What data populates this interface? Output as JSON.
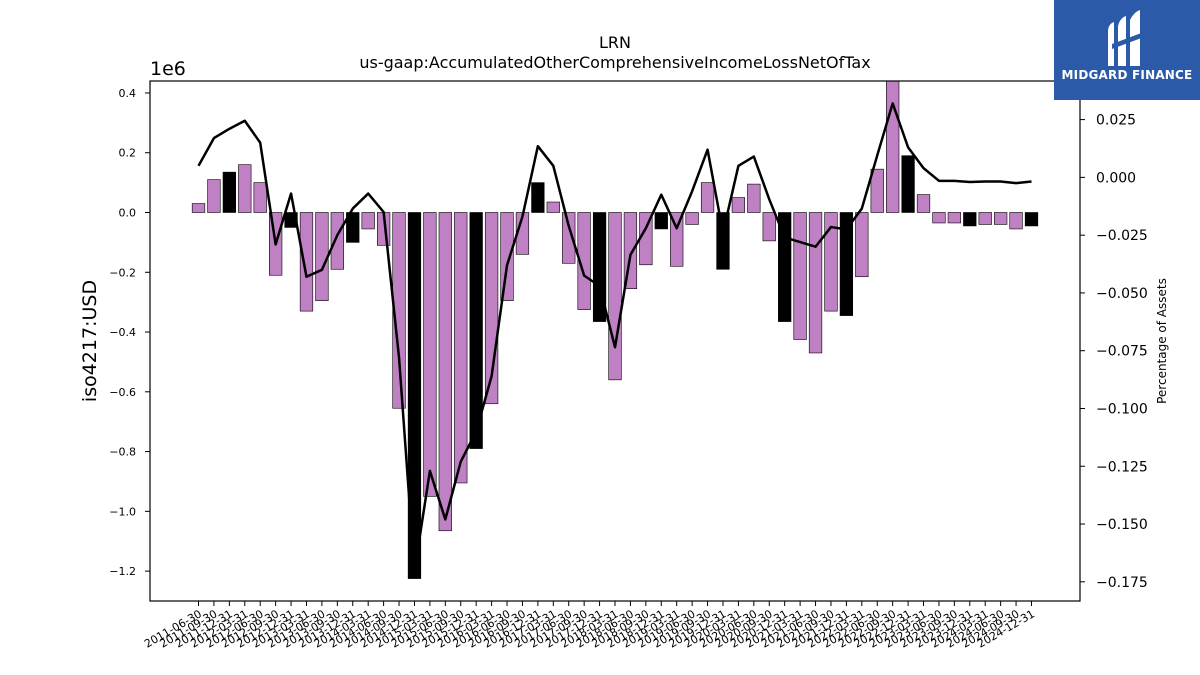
{
  "chart_data": {
    "type": "bar",
    "title": "LRN",
    "subtitle": "us-gaap:AccumulatedOtherComprehensiveIncomeLossNetOfTax",
    "ylabel": "iso4217:USD",
    "y_offset_label": "1e6",
    "y2label": "Percentage of Assets",
    "ylim": [
      -1.3,
      0.44
    ],
    "y2lim": [
      -0.1833,
      0.0417
    ],
    "yticks": [
      "0.4",
      "0.2",
      "0.0",
      "−0.2",
      "−0.4",
      "−0.6",
      "−0.8",
      "−1.0",
      "−1.2"
    ],
    "y2ticks": [
      "0.025",
      "0.000",
      "−0.025",
      "−0.050",
      "−0.075",
      "−0.100",
      "−0.125",
      "−0.150",
      "−0.175"
    ],
    "categories": [
      "2011-06-30",
      "2011-09-30",
      "2011-12-31",
      "2012-03-31",
      "2012-06-30",
      "2012-09-30",
      "2012-12-31",
      "2013-03-31",
      "2013-06-30",
      "2013-09-30",
      "2013-12-31",
      "2014-03-31",
      "2014-06-30",
      "2014-09-30",
      "2014-12-31",
      "2015-03-31",
      "2015-06-30",
      "2015-09-30",
      "2015-12-31",
      "2016-03-31",
      "2016-06-30",
      "2016-09-30",
      "2016-12-31",
      "2017-03-31",
      "2017-06-30",
      "2017-09-30",
      "2017-12-31",
      "2018-03-31",
      "2018-06-30",
      "2018-09-30",
      "2018-12-31",
      "2019-03-31",
      "2019-06-30",
      "2019-09-30",
      "2019-12-31",
      "2020-03-31",
      "2020-06-30",
      "2020-09-30",
      "2020-12-31",
      "2021-03-31",
      "2021-06-30",
      "2021-09-30",
      "2021-12-31",
      "2022-03-31",
      "2022-06-30",
      "2022-09-30",
      "2022-12-31",
      "2023-03-31",
      "2023-06-30",
      "2023-09-30",
      "2023-12-31",
      "2024-03-31",
      "2024-06-30",
      "2024-09-30",
      "2024-12-31"
    ],
    "series": [
      {
        "type": "bar",
        "values": [
          0.03,
          0.11,
          0.135,
          0.16,
          0.1,
          -0.21,
          -0.05,
          -0.33,
          -0.295,
          -0.19,
          -0.1,
          -0.055,
          -0.11,
          -0.655,
          -1.225,
          -0.95,
          -1.065,
          -0.905,
          -0.79,
          -0.64,
          -0.295,
          -0.14,
          0.1,
          0.035,
          -0.17,
          -0.325,
          -0.365,
          -0.56,
          -0.255,
          -0.175,
          -0.055,
          -0.18,
          -0.04,
          0.1,
          -0.19,
          0.05,
          0.095,
          -0.095,
          -0.365,
          -0.425,
          -0.47,
          -0.33,
          -0.345,
          -0.215,
          0.145,
          0.44,
          0.19,
          0.06,
          -0.035,
          -0.035,
          -0.045,
          -0.04,
          -0.04,
          -0.055,
          -0.045
        ],
        "highlight": [
          false,
          false,
          true,
          false,
          false,
          false,
          true,
          false,
          false,
          false,
          true,
          false,
          false,
          false,
          true,
          false,
          false,
          false,
          true,
          false,
          false,
          false,
          true,
          false,
          false,
          false,
          true,
          false,
          false,
          false,
          true,
          false,
          false,
          false,
          true,
          false,
          false,
          false,
          true,
          false,
          false,
          false,
          true,
          false,
          false,
          false,
          true,
          false,
          false,
          false,
          true,
          false,
          false,
          false,
          true
        ]
      },
      {
        "type": "line",
        "axis": "right",
        "values": [
          0.005,
          0.017,
          0.021,
          0.0245,
          0.015,
          -0.029,
          -0.007,
          -0.043,
          -0.04,
          -0.025,
          -0.0135,
          -0.007,
          -0.015,
          -0.078,
          -0.1705,
          -0.127,
          -0.148,
          -0.123,
          -0.11,
          -0.086,
          -0.038,
          -0.017,
          0.0135,
          0.005,
          -0.021,
          -0.0425,
          -0.047,
          -0.0735,
          -0.0335,
          -0.022,
          -0.0075,
          -0.022,
          -0.006,
          0.012,
          -0.024,
          0.005,
          0.009,
          -0.0095,
          -0.026,
          -0.028,
          -0.03,
          -0.0215,
          -0.0225,
          -0.0135,
          0.0095,
          0.032,
          0.013,
          0.004,
          -0.0015,
          -0.0015,
          -0.002,
          -0.0018,
          -0.0018,
          -0.0025,
          -0.0018
        ]
      }
    ],
    "colors": {
      "bar": "#c080c4",
      "highlight_bar": "#000000",
      "line": "#000000"
    }
  },
  "logo": {
    "text": "MIDGARD FINANCE",
    "bg": "#2a5aa8"
  }
}
